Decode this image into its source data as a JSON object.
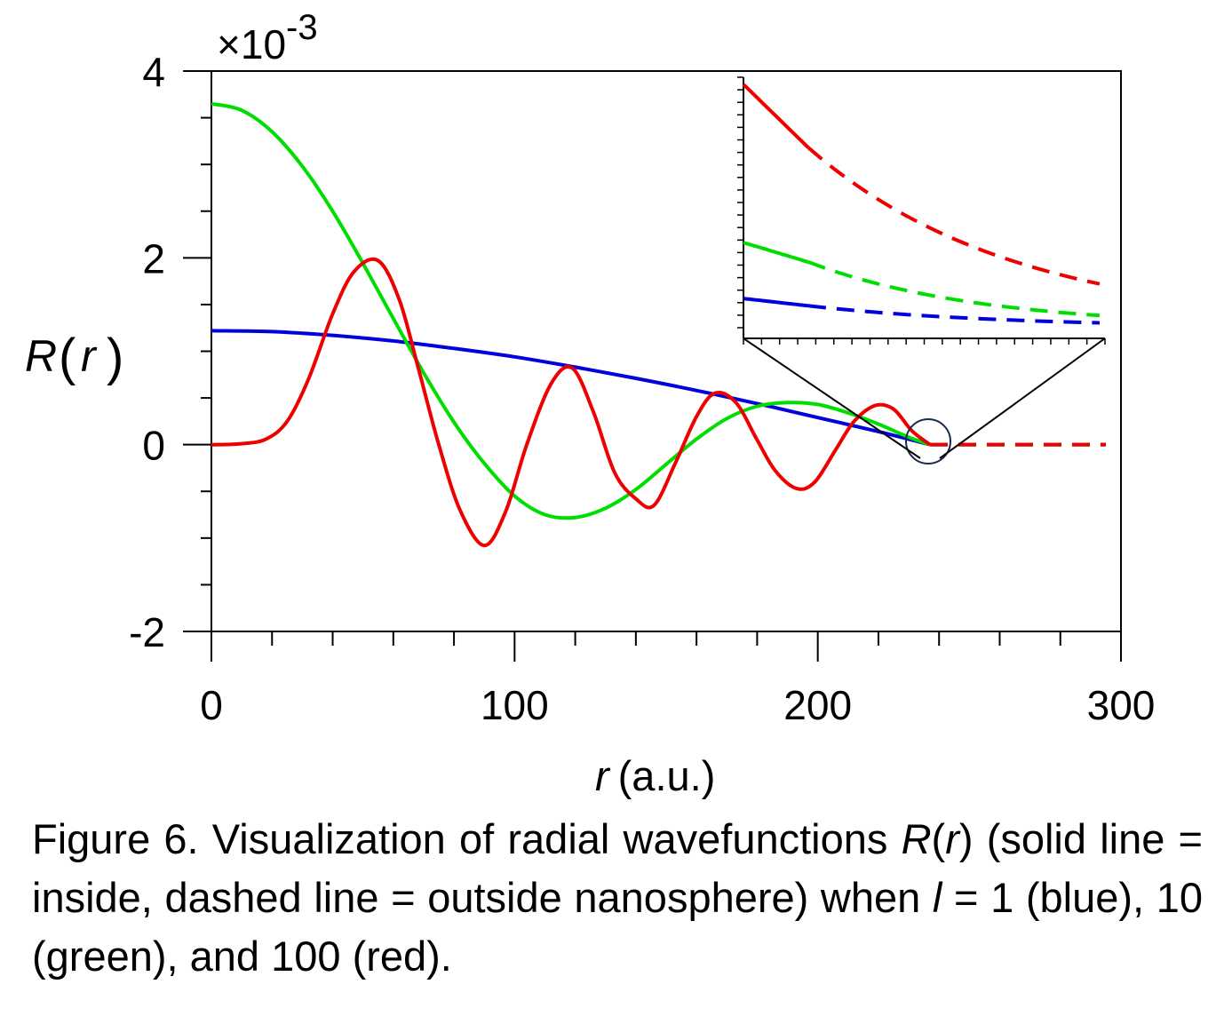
{
  "chart_data": {
    "type": "line",
    "ylabel_R": "R",
    "ylabel_r": "r",
    "xlabel_var": "r",
    "xlabel_unit": "(a.u.)",
    "scale_prefix": "×10",
    "scale_exponent": "-3",
    "xlim": [
      0,
      300
    ],
    "ylim": [
      -2,
      4
    ],
    "x_ticks": [
      0,
      100,
      200,
      300
    ],
    "x_tick_labels": [
      "0",
      "100",
      "200",
      "300"
    ],
    "y_ticks": [
      -2,
      0,
      2,
      4
    ],
    "y_tick_labels": [
      "-2",
      "0",
      "2",
      "4"
    ],
    "grid": false,
    "legend": "none",
    "boundary_r": 237,
    "series": [
      {
        "color": "#0000dd",
        "solid": {
          "x": [
            0,
            20,
            40,
            60,
            80,
            100,
            120,
            140,
            160,
            180,
            200,
            220,
            237
          ],
          "y": [
            1.22,
            1.21,
            1.17,
            1.11,
            1.03,
            0.94,
            0.83,
            0.71,
            0.58,
            0.44,
            0.29,
            0.14,
            0
          ]
        },
        "dashed": {
          "x": [
            237,
            295
          ],
          "y": [
            0,
            0
          ]
        }
      },
      {
        "color": "#00dd00",
        "solid": {
          "x": [
            0,
            10,
            20,
            30,
            40,
            50,
            60,
            70,
            80,
            90,
            100,
            110,
            120,
            130,
            140,
            150,
            160,
            170,
            180,
            190,
            200,
            210,
            220,
            230,
            237
          ],
          "y": [
            3.65,
            3.58,
            3.35,
            2.98,
            2.5,
            1.94,
            1.35,
            0.77,
            0.24,
            -0.2,
            -0.55,
            -0.75,
            -0.78,
            -0.68,
            -0.48,
            -0.21,
            0.06,
            0.28,
            0.41,
            0.45,
            0.43,
            0.34,
            0.22,
            0.08,
            0
          ]
        },
        "dashed": {
          "x": [
            237,
            295
          ],
          "y": [
            0,
            0
          ]
        }
      },
      {
        "color": "#ee0000",
        "solid": {
          "x": [
            0,
            10,
            18,
            25,
            32,
            40,
            47,
            55,
            62,
            68,
            75,
            82,
            90,
            97,
            104,
            112,
            119,
            126,
            133,
            140,
            146,
            153,
            160,
            166,
            173,
            180,
            186,
            193,
            199,
            206,
            212,
            219,
            225,
            231,
            237
          ],
          "y": [
            0,
            0.01,
            0.06,
            0.25,
            0.7,
            1.4,
            1.85,
            1.97,
            1.55,
            0.85,
            0.0,
            -0.7,
            -1.08,
            -0.72,
            0.0,
            0.65,
            0.82,
            0.35,
            -0.3,
            -0.58,
            -0.65,
            -0.2,
            0.3,
            0.55,
            0.45,
            0.05,
            -0.28,
            -0.47,
            -0.4,
            -0.05,
            0.25,
            0.42,
            0.38,
            0.15,
            0
          ]
        },
        "dashed": {
          "x": [
            237,
            295
          ],
          "y": [
            0,
            0
          ]
        }
      }
    ],
    "inset": {
      "description_zoom_target_x": 237,
      "curves": [
        {
          "color": "#ee0000",
          "solid_y_start": 1.0,
          "solid_y_end": 0.74,
          "dashed_y_end": 0.18
        },
        {
          "color": "#00dd00",
          "solid_y_start": 0.35,
          "solid_y_end": 0.27,
          "dashed_y_end": 0.05
        },
        {
          "color": "#0000dd",
          "solid_y_start": 0.12,
          "solid_y_end": 0.09,
          "dashed_y_end": 0.02
        }
      ]
    }
  },
  "caption": {
    "part1": "Figure 6. Visualization of radial wavefunctions ",
    "R": "R",
    "paren_open": "(",
    "r": "r",
    "paren_close": ")",
    "part2": " (solid line = inside, dashed line = outside nanosphere) when ",
    "l": "l",
    "part3": " = 1 (blue), 10 (green), and 100 (red)."
  }
}
